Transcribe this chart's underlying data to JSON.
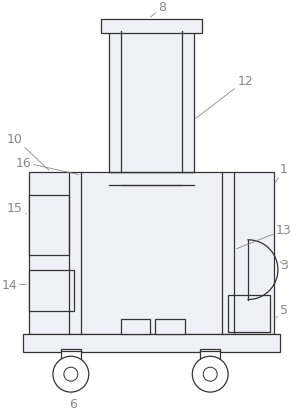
{
  "bg_color": "#ffffff",
  "line_color": "#333333",
  "fill_color": "#f0f0f8",
  "label_color": "#888888",
  "figsize": [
    3.02,
    4.14
  ],
  "dpi": 100,
  "lw": 0.9
}
